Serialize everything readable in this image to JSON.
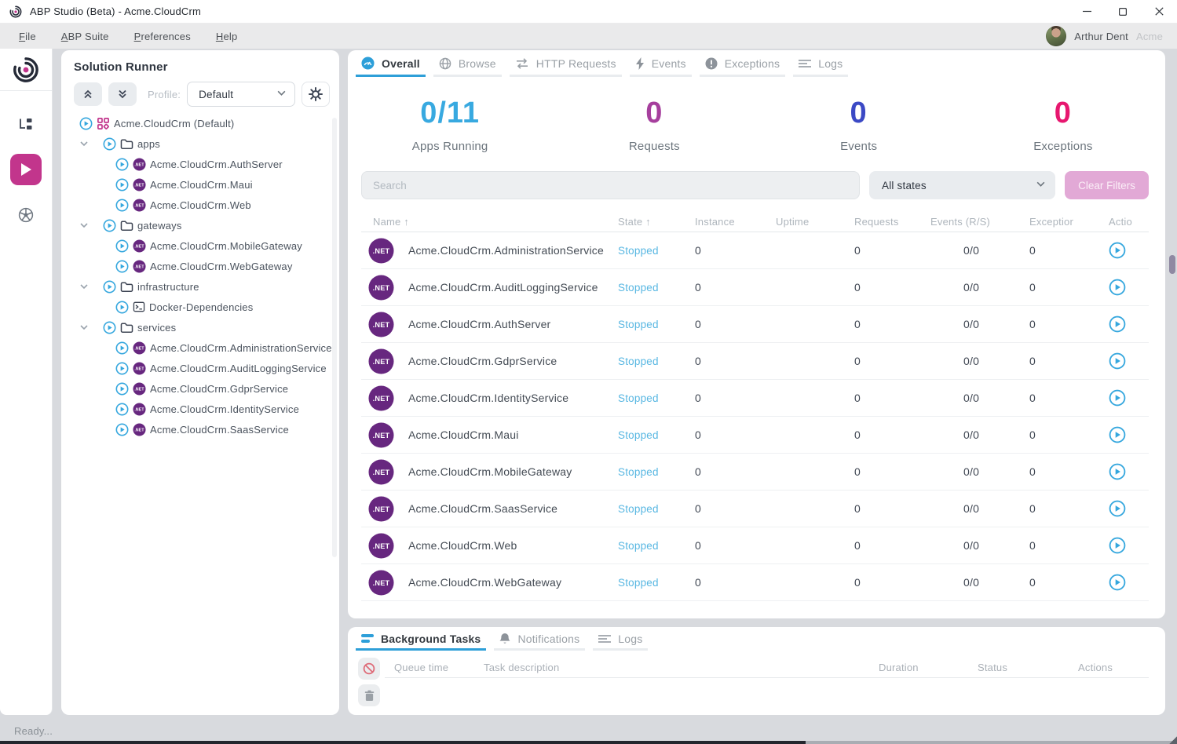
{
  "window": {
    "title": "ABP Studio (Beta) - Acme.CloudCrm",
    "status_text": "Ready..."
  },
  "menubar": {
    "items": [
      "File",
      "ABP Suite",
      "Preferences",
      "Help"
    ],
    "user_name": "Arthur Dent",
    "user_org": "Acme"
  },
  "rail": {
    "items": [
      {
        "icon": "abp-logo-icon"
      },
      {
        "icon": "solution-explorer-icon",
        "active": false
      },
      {
        "icon": "solution-runner-play-icon",
        "active": true
      },
      {
        "icon": "kubernetes-icon",
        "active": false
      }
    ]
  },
  "solution_runner": {
    "title": "Solution Runner",
    "profile_label": "Profile:",
    "profile_value": "Default",
    "tree": [
      {
        "depth": 0,
        "chevron": false,
        "icon": "solution-grid-icon",
        "label": "Acme.CloudCrm (Default)"
      },
      {
        "depth": 0,
        "chevron": true,
        "icon": "folder-icon",
        "label": "apps"
      },
      {
        "depth": 1,
        "chevron": false,
        "icon": "dotnet-icon",
        "label": "Acme.CloudCrm.AuthServer"
      },
      {
        "depth": 1,
        "chevron": false,
        "icon": "dotnet-icon",
        "label": "Acme.CloudCrm.Maui"
      },
      {
        "depth": 1,
        "chevron": false,
        "icon": "dotnet-icon",
        "label": "Acme.CloudCrm.Web"
      },
      {
        "depth": 0,
        "chevron": true,
        "icon": "folder-icon",
        "label": "gateways"
      },
      {
        "depth": 1,
        "chevron": false,
        "icon": "dotnet-icon",
        "label": "Acme.CloudCrm.MobileGateway"
      },
      {
        "depth": 1,
        "chevron": false,
        "icon": "dotnet-icon",
        "label": "Acme.CloudCrm.WebGateway"
      },
      {
        "depth": 0,
        "chevron": true,
        "icon": "folder-icon",
        "label": "infrastructure"
      },
      {
        "depth": 1,
        "chevron": false,
        "icon": "terminal-icon",
        "label": "Docker-Dependencies"
      },
      {
        "depth": 0,
        "chevron": true,
        "icon": "folder-icon",
        "label": "services"
      },
      {
        "depth": 1,
        "chevron": false,
        "icon": "dotnet-icon",
        "label": "Acme.CloudCrm.AdministrationService"
      },
      {
        "depth": 1,
        "chevron": false,
        "icon": "dotnet-icon",
        "label": "Acme.CloudCrm.AuditLoggingService"
      },
      {
        "depth": 1,
        "chevron": false,
        "icon": "dotnet-icon",
        "label": "Acme.CloudCrm.GdprService"
      },
      {
        "depth": 1,
        "chevron": false,
        "icon": "dotnet-icon",
        "label": "Acme.CloudCrm.IdentityService"
      },
      {
        "depth": 1,
        "chevron": false,
        "icon": "dotnet-icon",
        "label": "Acme.CloudCrm.SaasService"
      }
    ]
  },
  "main": {
    "tabs": [
      {
        "label": "Overall",
        "icon": "gauge-icon",
        "active": true
      },
      {
        "label": "Browse",
        "icon": "globe-icon",
        "active": false
      },
      {
        "label": "HTTP Requests",
        "icon": "swap-arrows-icon",
        "active": false
      },
      {
        "label": "Events",
        "icon": "lightning-icon",
        "active": false
      },
      {
        "label": "Exceptions",
        "icon": "exclamation-icon",
        "active": false
      },
      {
        "label": "Logs",
        "icon": "lines-icon",
        "active": false
      }
    ],
    "stats": [
      {
        "value": "0/11",
        "label": "Apps Running",
        "color": "#38a9e0"
      },
      {
        "value": "0",
        "label": "Requests",
        "color": "#a63f9d"
      },
      {
        "value": "0",
        "label": "Events",
        "color": "#3b49c5"
      },
      {
        "value": "0",
        "label": "Exceptions",
        "color": "#e7176f"
      }
    ],
    "filters": {
      "search_placeholder": "Search",
      "state_filter_value": "All states",
      "clear_button_label": "Clear Filters"
    },
    "table": {
      "sort_arrow": "↑",
      "headers": [
        "Name",
        "State",
        "Instance",
        "Uptime",
        "Requests",
        "Events (R/S)",
        "Exceptions",
        "Actions"
      ],
      "state_color": "#58b7e2",
      "rows": [
        {
          "name": "Acme.CloudCrm.AdministrationService",
          "state": "Stopped",
          "instance": "0",
          "uptime": "",
          "requests": "0",
          "events": "0/0",
          "exceptions": "0"
        },
        {
          "name": "Acme.CloudCrm.AuditLoggingService",
          "state": "Stopped",
          "instance": "0",
          "uptime": "",
          "requests": "0",
          "events": "0/0",
          "exceptions": "0"
        },
        {
          "name": "Acme.CloudCrm.AuthServer",
          "state": "Stopped",
          "instance": "0",
          "uptime": "",
          "requests": "0",
          "events": "0/0",
          "exceptions": "0"
        },
        {
          "name": "Acme.CloudCrm.GdprService",
          "state": "Stopped",
          "instance": "0",
          "uptime": "",
          "requests": "0",
          "events": "0/0",
          "exceptions": "0"
        },
        {
          "name": "Acme.CloudCrm.IdentityService",
          "state": "Stopped",
          "instance": "0",
          "uptime": "",
          "requests": "0",
          "events": "0/0",
          "exceptions": "0"
        },
        {
          "name": "Acme.CloudCrm.Maui",
          "state": "Stopped",
          "instance": "0",
          "uptime": "",
          "requests": "0",
          "events": "0/0",
          "exceptions": "0"
        },
        {
          "name": "Acme.CloudCrm.MobileGateway",
          "state": "Stopped",
          "instance": "0",
          "uptime": "",
          "requests": "0",
          "events": "0/0",
          "exceptions": "0"
        },
        {
          "name": "Acme.CloudCrm.SaasService",
          "state": "Stopped",
          "instance": "0",
          "uptime": "",
          "requests": "0",
          "events": "0/0",
          "exceptions": "0"
        },
        {
          "name": "Acme.CloudCrm.Web",
          "state": "Stopped",
          "instance": "0",
          "uptime": "",
          "requests": "0",
          "events": "0/0",
          "exceptions": "0"
        },
        {
          "name": "Acme.CloudCrm.WebGateway",
          "state": "Stopped",
          "instance": "0",
          "uptime": "",
          "requests": "0",
          "events": "0/0",
          "exceptions": "0"
        }
      ]
    }
  },
  "bottom_panel": {
    "tabs": [
      {
        "label": "Background Tasks",
        "icon": "stack-icon",
        "active": true
      },
      {
        "label": "Notifications",
        "icon": "bell-icon",
        "active": false
      },
      {
        "label": "Logs",
        "icon": "lines-icon",
        "active": false
      }
    ],
    "headers": [
      "Queue time",
      "Task description",
      "Duration",
      "Status",
      "Actions"
    ]
  }
}
